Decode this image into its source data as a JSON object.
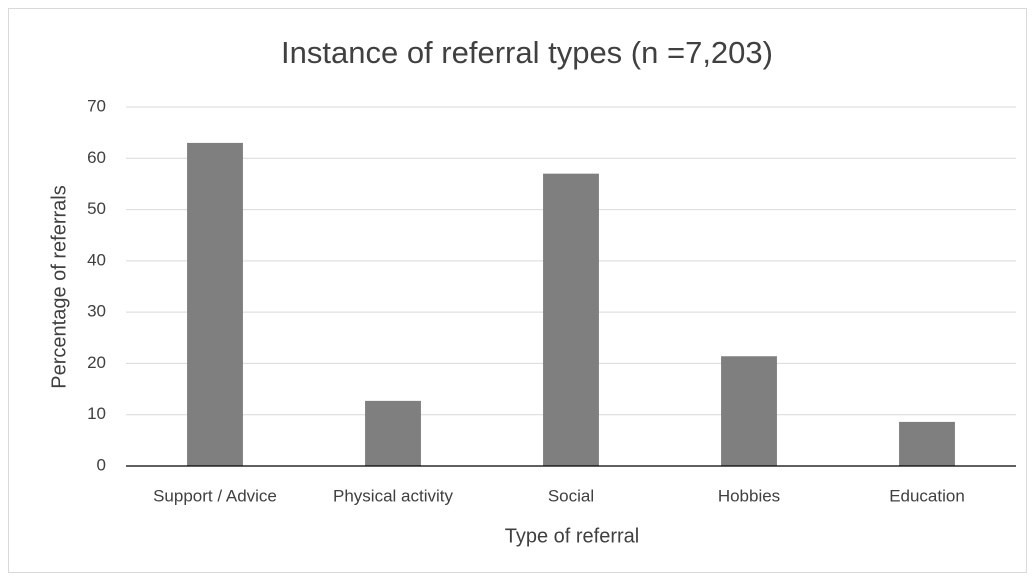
{
  "chart_data": {
    "type": "bar",
    "title": "Instance of referral types (n =7,203)",
    "x_label": "Type of referral",
    "y_label": "Percentage of referrals",
    "categories": [
      "Support / Advice",
      "Physical activity",
      "Social",
      "Hobbies",
      "Education"
    ],
    "values": [
      63,
      12.7,
      57,
      21.4,
      8.6
    ],
    "color": "#7f7f7f",
    "ylim": [
      0,
      70
    ],
    "yticks": [
      0,
      10,
      20,
      30,
      40,
      50,
      60,
      70
    ],
    "grid": true
  }
}
